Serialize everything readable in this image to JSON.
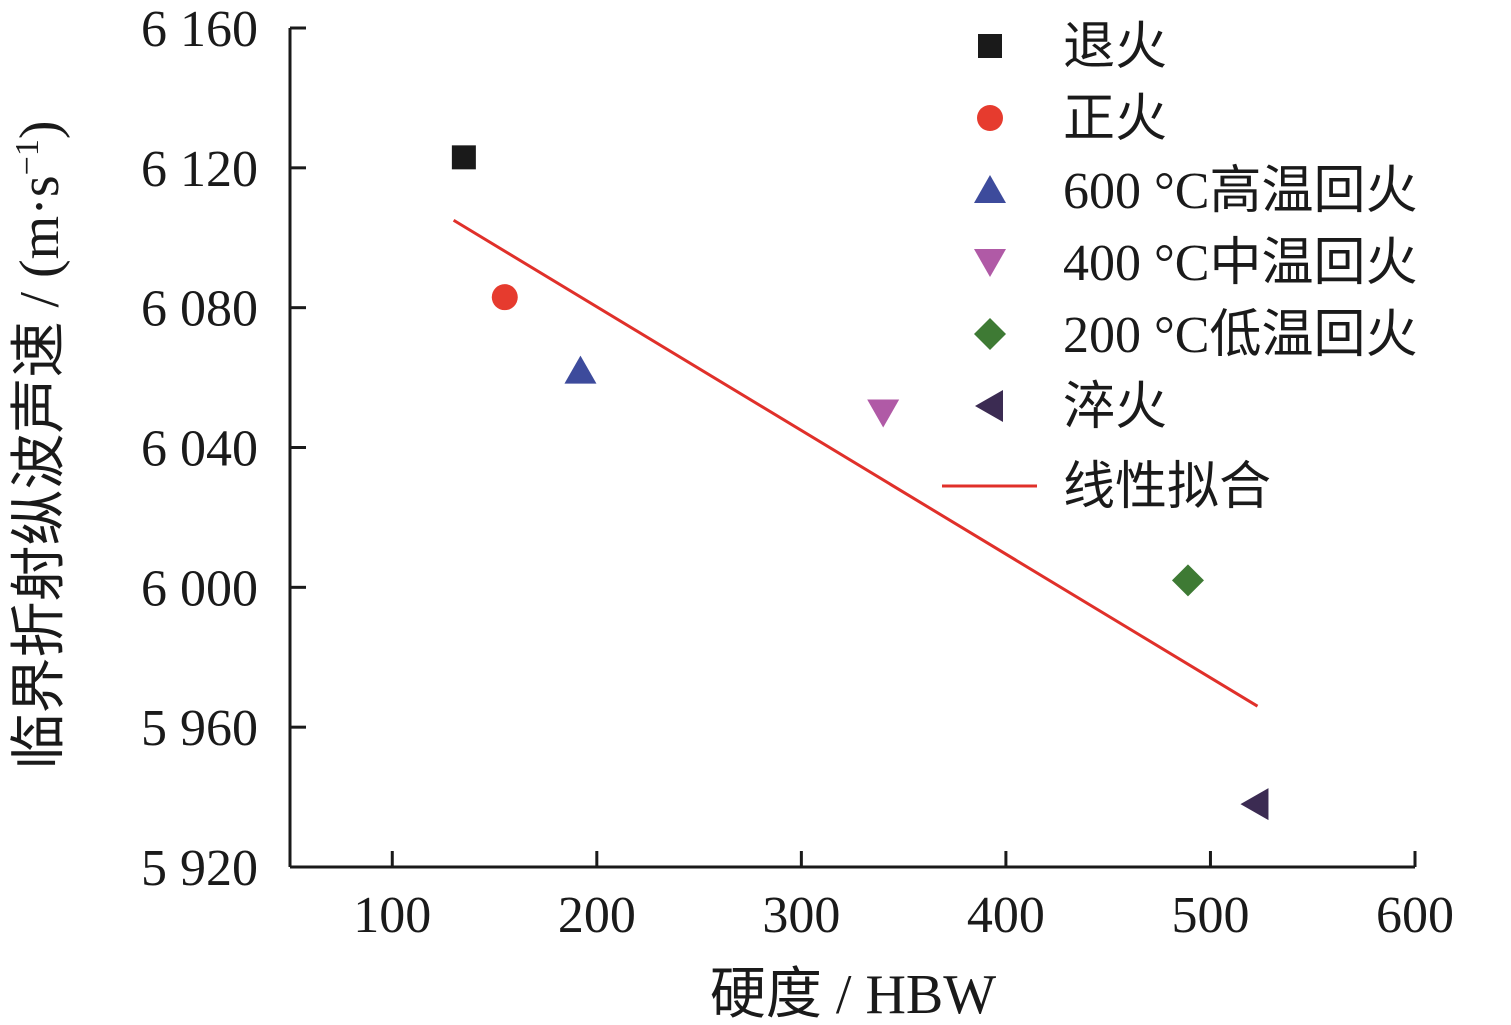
{
  "chart_data": {
    "type": "scatter",
    "xlabel": "硬度 / HBW",
    "ylabel": "临界折射纵波声速 / (m·s",
    "ylabel_sup": "−1",
    "ylabel_close": ")",
    "xlim": [
      50,
      600
    ],
    "ylim": [
      5920,
      6160
    ],
    "x_ticks": [
      100,
      200,
      300,
      400,
      500,
      600
    ],
    "x_tick_labels": [
      "100",
      "200",
      "300",
      "400",
      "500",
      "600"
    ],
    "y_ticks": [
      5920,
      5960,
      6000,
      6040,
      6080,
      6120,
      6160
    ],
    "y_tick_labels": [
      "5 920",
      "5 960",
      "6 000",
      "6 040",
      "6 080",
      "6 120",
      "6 160"
    ],
    "grid": false,
    "legend_position": "top-right",
    "series": [
      {
        "name": "退火",
        "marker": "square",
        "color": "#1a1a1a",
        "x": 135,
        "y": 6123
      },
      {
        "name": "正火",
        "marker": "circle",
        "color": "#e63b2e",
        "x": 155,
        "y": 6083
      },
      {
        "name": "600 °C高温回火",
        "marker": "triangle-up",
        "color": "#3d4b9c",
        "x": 192,
        "y": 6062
      },
      {
        "name": "400 °C中温回火",
        "marker": "triangle-down",
        "color": "#b05aa6",
        "x": 340,
        "y": 6050
      },
      {
        "name": "200 °C低温回火",
        "marker": "diamond",
        "color": "#3e7a34",
        "x": 489,
        "y": 6002
      },
      {
        "name": "淬火",
        "marker": "triangle-left",
        "color": "#3b2b52",
        "x": 522,
        "y": 5938
      }
    ],
    "fit": {
      "name": "线性拟合",
      "color": "#e0302a",
      "x": [
        130,
        523
      ],
      "y": [
        6105,
        5966
      ]
    }
  }
}
